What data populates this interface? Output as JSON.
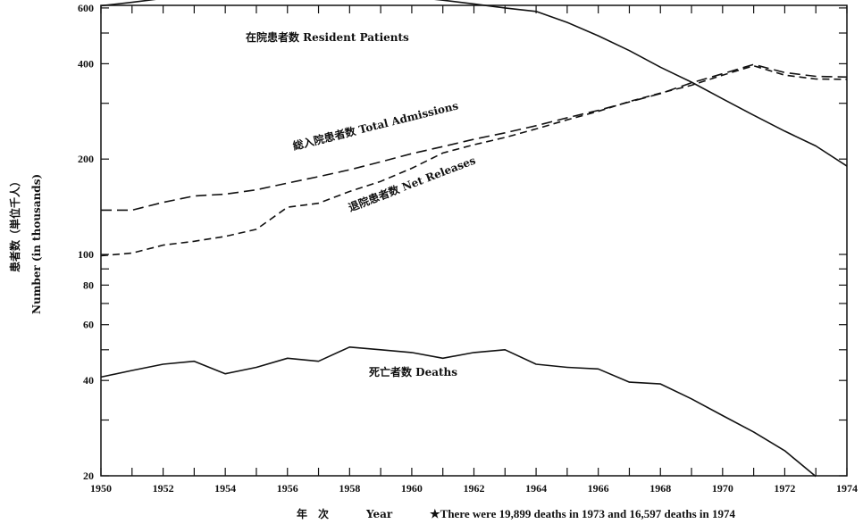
{
  "chart_data": {
    "type": "line",
    "y_scale": "log",
    "xlim": [
      1950,
      1974
    ],
    "ylim": [
      20,
      700
    ],
    "x_ticks": [
      1950,
      1951,
      1952,
      1953,
      1954,
      1955,
      1956,
      1957,
      1958,
      1959,
      1960,
      1961,
      1962,
      1963,
      1964,
      1965,
      1966,
      1967,
      1968,
      1969,
      1970,
      1971,
      1972,
      1973,
      1974
    ],
    "x_tick_labels": [
      "1950",
      "1952",
      "1954",
      "1956",
      "1958",
      "1960",
      "1962",
      "1964",
      "1966",
      "1968",
      "1970",
      "1972",
      "1974"
    ],
    "y_ticks": [
      20,
      30,
      40,
      50,
      60,
      70,
      80,
      90,
      100,
      200,
      300,
      400,
      500,
      600
    ],
    "y_tick_labels": [
      "20",
      "40",
      "60",
      "80",
      "100",
      "200",
      "400",
      "600"
    ],
    "xlabel_jp": "年　次",
    "xlabel_en": "Year",
    "ylabel_jp": "患者数（単位千人）",
    "ylabel_en": "Number (in thousands)",
    "footnote": "★There were 19,899 deaths in 1973 and 16,597 deaths in 1974",
    "series": [
      {
        "name": "在院患者数 Resident Patients",
        "style": "solid",
        "x": [
          1950,
          1951,
          1952,
          1953,
          1954,
          1955,
          1956,
          1957,
          1958,
          1959,
          1960,
          1961,
          1962,
          1963,
          1964,
          1965,
          1966,
          1967,
          1968,
          1969,
          1970,
          1971,
          1972,
          1973,
          1974
        ],
        "values": [
          610,
          625,
          643,
          660,
          676,
          678,
          676,
          674,
          668,
          660,
          650,
          635,
          618,
          600,
          585,
          540,
          490,
          440,
          390,
          350,
          310,
          275,
          245,
          220,
          190
        ]
      },
      {
        "name": "総入院患者数 Total Admissions",
        "style": "dashed",
        "x": [
          1950,
          1951,
          1952,
          1953,
          1954,
          1955,
          1956,
          1957,
          1958,
          1959,
          1960,
          1961,
          1962,
          1963,
          1964,
          1965,
          1966,
          1967,
          1968,
          1969,
          1970,
          1971,
          1972,
          1973,
          1974
        ],
        "values": [
          138,
          138,
          146,
          153,
          155,
          160,
          168,
          176,
          185,
          196,
          208,
          219,
          231,
          242,
          255,
          270,
          285,
          303,
          322,
          348,
          372,
          398,
          375,
          365,
          363
        ]
      },
      {
        "name": "退院患者数 Net Releases",
        "style": "dashed",
        "x": [
          1950,
          1951,
          1952,
          1953,
          1954,
          1955,
          1956,
          1957,
          1958,
          1959,
          1960,
          1961,
          1962,
          1963,
          1964,
          1965,
          1966,
          1967,
          1968,
          1969,
          1970,
          1971,
          1972,
          1973,
          1974
        ],
        "values": [
          99,
          101,
          107,
          110,
          114,
          120,
          141,
          145,
          158,
          170,
          187,
          209,
          222,
          234,
          249,
          266,
          283,
          304,
          323,
          342,
          368,
          394,
          368,
          358,
          357
        ]
      },
      {
        "name": "死亡者数 Deaths",
        "style": "solid",
        "x": [
          1950,
          1951,
          1952,
          1953,
          1954,
          1955,
          1956,
          1957,
          1958,
          1959,
          1960,
          1961,
          1962,
          1963,
          1964,
          1965,
          1966,
          1967,
          1968,
          1969,
          1970,
          1971,
          1972,
          1973
        ],
        "values": [
          41,
          43,
          45,
          46,
          42,
          44,
          47,
          46,
          51,
          50,
          49,
          47,
          49,
          50,
          45,
          44,
          43.5,
          39.5,
          39,
          35,
          31,
          27.5,
          24,
          19.9
        ]
      }
    ]
  }
}
